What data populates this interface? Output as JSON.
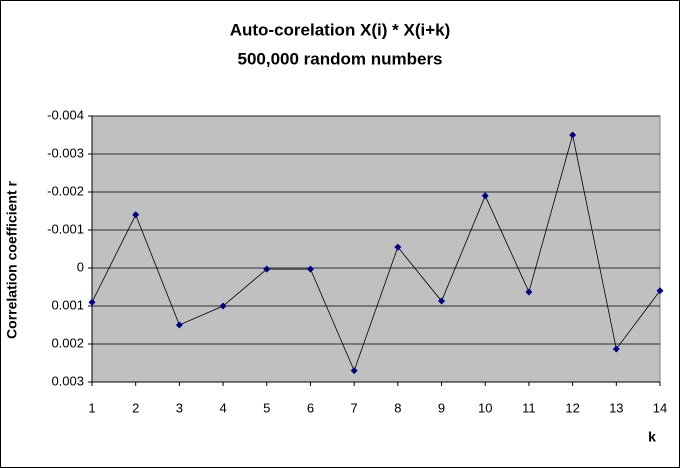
{
  "chart_data": {
    "type": "line",
    "title": [
      "Auto-corelation X(i) * X(i+k)",
      "500,000 random numbers"
    ],
    "ylabel": "Correlation coefficient r",
    "xlabel": "k",
    "x": [
      1,
      2,
      3,
      4,
      5,
      6,
      7,
      8,
      9,
      10,
      11,
      12,
      13,
      14
    ],
    "series": [
      {
        "color": "#000080",
        "values": [
          0.0009,
          -0.0014,
          0.0015,
          0.001,
          3e-05,
          3e-05,
          0.0027,
          -0.00055,
          0.00087,
          -0.0019,
          0.00063,
          -0.0035,
          0.00213,
          0.0006
        ]
      }
    ],
    "xlim": [
      1,
      14
    ],
    "xticks": [
      1,
      2,
      3,
      4,
      5,
      6,
      7,
      8,
      9,
      10,
      11,
      12,
      13,
      14
    ],
    "ylim": [
      -0.004,
      0.003
    ],
    "yticks": [
      -0.004,
      -0.003,
      -0.002,
      -0.001,
      0,
      0.001,
      0.002,
      0.003
    ],
    "y_reversed": true,
    "grid": true,
    "plot_background": "#c0c0c0"
  }
}
